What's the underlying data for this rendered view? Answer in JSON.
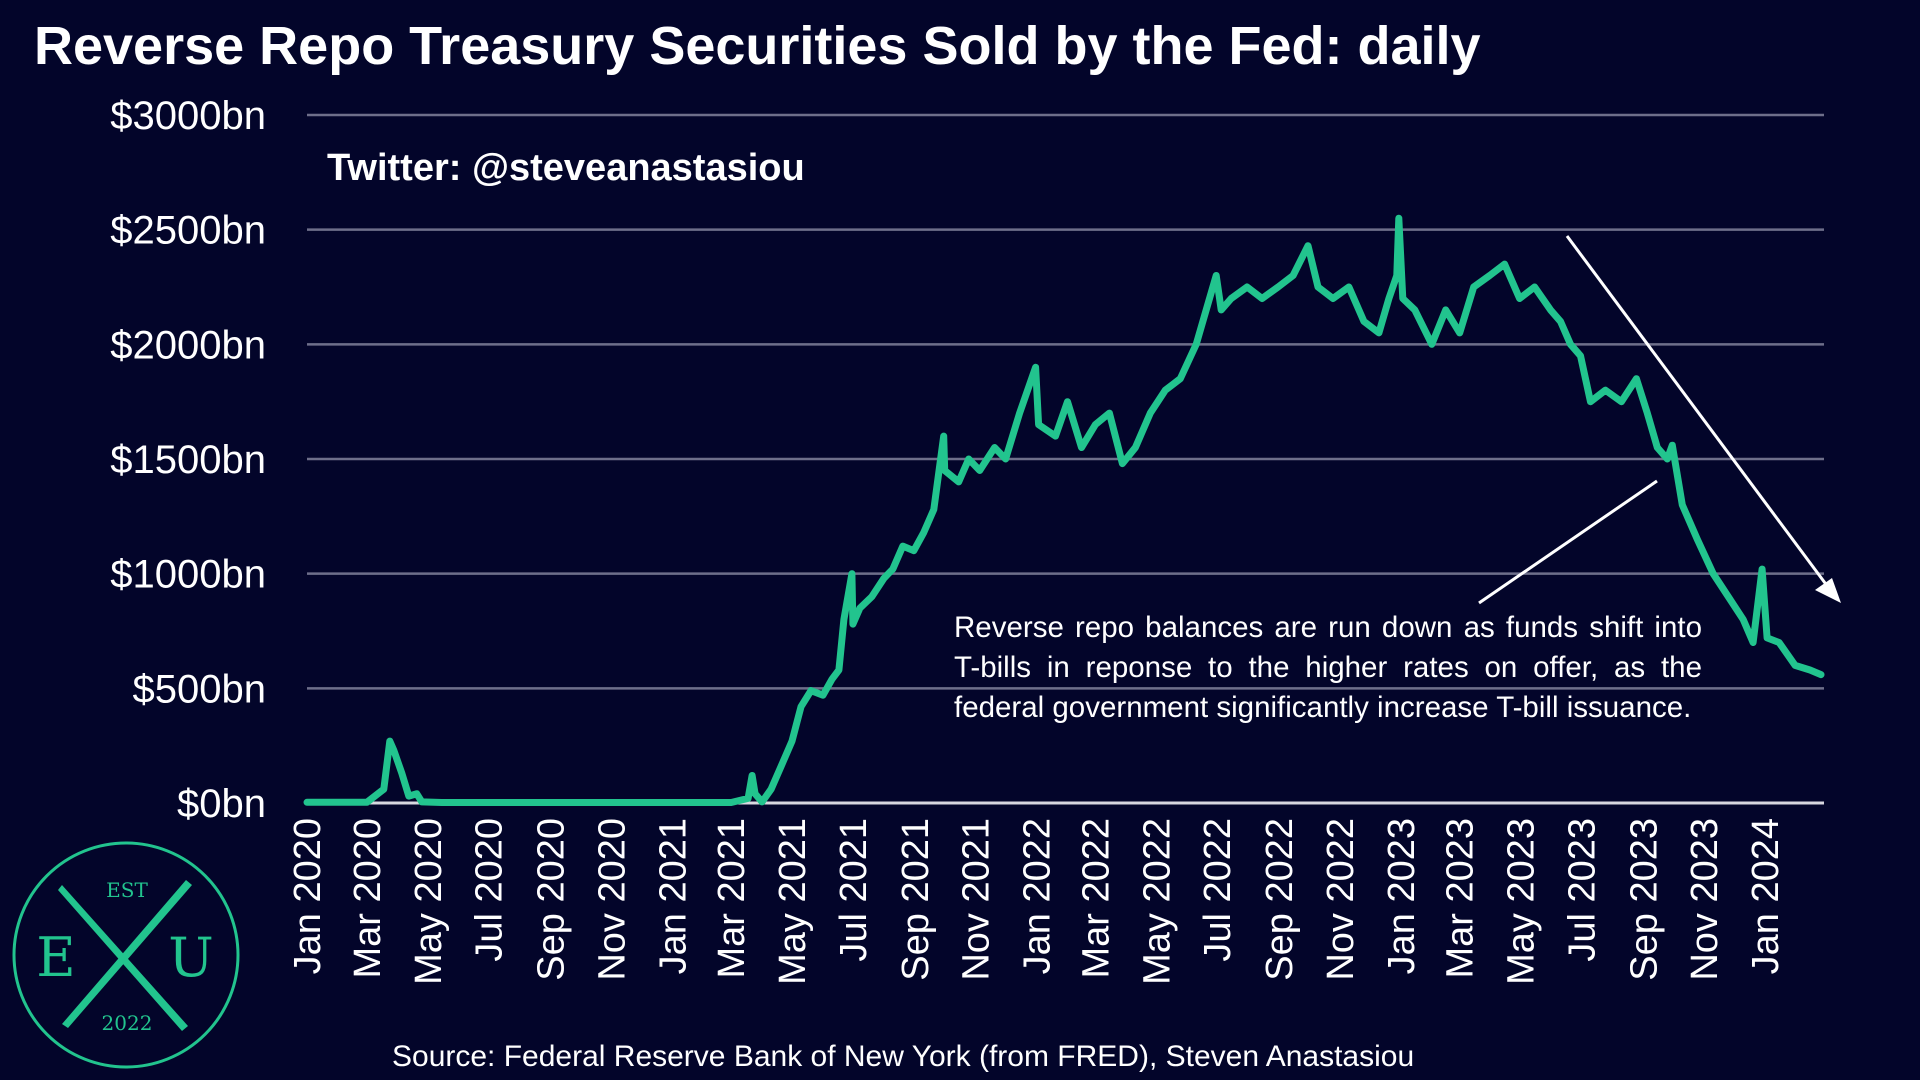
{
  "colors": {
    "background": "#03052a",
    "series": "#22c48e",
    "grid": "#6e6f8a",
    "text": "#ffffff"
  },
  "watermark": "Twitter: @steveanastasiou",
  "annotation": "Reverse repo balances are run down as funds shift into T-bills in reponse to the higher rates on offer, as the federal government significantly increase T-bill issuance.",
  "source": "Source: Federal Reserve Bank of New York (from FRED), Steven Anastasiou",
  "logo": {
    "top": "EST",
    "left": "E",
    "right": "U",
    "bottom": "2022"
  },
  "chart_data": {
    "type": "line",
    "title": "Reverse Repo Treasury Securities Sold by the Fed: daily",
    "xlabel": "",
    "ylabel": "",
    "ylim": [
      0,
      3000
    ],
    "yticks": [
      {
        "value": 0,
        "label": "$0bn"
      },
      {
        "value": 500,
        "label": "$500bn"
      },
      {
        "value": 1000,
        "label": "$1000bn"
      },
      {
        "value": 1500,
        "label": "$1500bn"
      },
      {
        "value": 2000,
        "label": "$2000bn"
      },
      {
        "value": 2500,
        "label": "$2500bn"
      },
      {
        "value": 3000,
        "label": "$3000bn"
      }
    ],
    "xlim": [
      "2020-01-01",
      "2024-02-29"
    ],
    "xticks": [
      {
        "date": "2020-01-01",
        "label": "Jan 2020"
      },
      {
        "date": "2020-03-01",
        "label": "Mar 2020"
      },
      {
        "date": "2020-05-01",
        "label": "May 2020"
      },
      {
        "date": "2020-07-01",
        "label": "Jul 2020"
      },
      {
        "date": "2020-09-01",
        "label": "Sep 2020"
      },
      {
        "date": "2020-11-01",
        "label": "Nov 2020"
      },
      {
        "date": "2021-01-01",
        "label": "Jan 2021"
      },
      {
        "date": "2021-03-01",
        "label": "Mar 2021"
      },
      {
        "date": "2021-05-01",
        "label": "May 2021"
      },
      {
        "date": "2021-07-01",
        "label": "Jul 2021"
      },
      {
        "date": "2021-09-01",
        "label": "Sep 2021"
      },
      {
        "date": "2021-11-01",
        "label": "Nov 2021"
      },
      {
        "date": "2022-01-01",
        "label": "Jan 2022"
      },
      {
        "date": "2022-03-01",
        "label": "Mar 2022"
      },
      {
        "date": "2022-05-01",
        "label": "May 2022"
      },
      {
        "date": "2022-07-01",
        "label": "Jul 2022"
      },
      {
        "date": "2022-09-01",
        "label": "Sep 2022"
      },
      {
        "date": "2022-11-01",
        "label": "Nov 2022"
      },
      {
        "date": "2023-01-01",
        "label": "Jan 2023"
      },
      {
        "date": "2023-03-01",
        "label": "Mar 2023"
      },
      {
        "date": "2023-05-01",
        "label": "May 2023"
      },
      {
        "date": "2023-07-01",
        "label": "Jul 2023"
      },
      {
        "date": "2023-09-01",
        "label": "Sep 2023"
      },
      {
        "date": "2023-11-01",
        "label": "Nov 2023"
      },
      {
        "date": "2024-01-01",
        "label": "Jan 2024"
      }
    ],
    "grid": "horizontal",
    "series": [
      {
        "name": "",
        "x": [
          "2020-01-01",
          "2020-03-01",
          "2020-03-18",
          "2020-03-24",
          "2020-03-28",
          "2020-04-05",
          "2020-04-12",
          "2020-04-20",
          "2020-04-25",
          "2020-05-15",
          "2020-09-01",
          "2021-01-01",
          "2021-03-01",
          "2021-03-18",
          "2021-03-22",
          "2021-03-25",
          "2021-04-01",
          "2021-04-10",
          "2021-04-20",
          "2021-05-01",
          "2021-05-10",
          "2021-05-20",
          "2021-06-01",
          "2021-06-10",
          "2021-06-17",
          "2021-06-22",
          "2021-06-30",
          "2021-07-01",
          "2021-07-08",
          "2021-07-20",
          "2021-08-01",
          "2021-08-10",
          "2021-08-20",
          "2021-08-31",
          "2021-09-10",
          "2021-09-20",
          "2021-09-30",
          "2021-10-01",
          "2021-10-15",
          "2021-10-25",
          "2021-11-05",
          "2021-11-20",
          "2021-12-01",
          "2021-12-15",
          "2021-12-31",
          "2022-01-03",
          "2022-01-20",
          "2022-02-01",
          "2022-02-15",
          "2022-03-01",
          "2022-03-15",
          "2022-03-28",
          "2022-04-10",
          "2022-04-25",
          "2022-05-10",
          "2022-05-25",
          "2022-06-10",
          "2022-06-20",
          "2022-06-30",
          "2022-07-05",
          "2022-07-15",
          "2022-07-31",
          "2022-08-15",
          "2022-08-31",
          "2022-09-15",
          "2022-09-30",
          "2022-10-10",
          "2022-10-25",
          "2022-11-10",
          "2022-11-25",
          "2022-12-10",
          "2022-12-20",
          "2022-12-28",
          "2022-12-30",
          "2023-01-03",
          "2023-01-15",
          "2023-02-01",
          "2023-02-15",
          "2023-03-01",
          "2023-03-15",
          "2023-03-31",
          "2023-04-15",
          "2023-04-30",
          "2023-05-15",
          "2023-05-31",
          "2023-06-10",
          "2023-06-20",
          "2023-06-30",
          "2023-07-10",
          "2023-07-25",
          "2023-08-10",
          "2023-08-25",
          "2023-09-05",
          "2023-09-15",
          "2023-09-25",
          "2023-09-30",
          "2023-10-10",
          "2023-10-25",
          "2023-11-10",
          "2023-11-25",
          "2023-12-10",
          "2023-12-20",
          "2023-12-29",
          "2024-01-03",
          "2024-01-15",
          "2024-01-31",
          "2024-02-15",
          "2024-02-26"
        ],
        "values": [
          3,
          3,
          60,
          270,
          230,
          130,
          30,
          40,
          5,
          2,
          2,
          2,
          2,
          20,
          120,
          40,
          5,
          60,
          160,
          270,
          420,
          490,
          470,
          540,
          580,
          800,
          1000,
          780,
          850,
          900,
          980,
          1020,
          1120,
          1100,
          1180,
          1280,
          1600,
          1450,
          1400,
          1500,
          1450,
          1550,
          1500,
          1700,
          1900,
          1650,
          1600,
          1750,
          1550,
          1650,
          1700,
          1480,
          1550,
          1700,
          1800,
          1850,
          2000,
          2150,
          2300,
          2150,
          2200,
          2250,
          2200,
          2250,
          2300,
          2430,
          2250,
          2200,
          2250,
          2100,
          2050,
          2200,
          2300,
          2550,
          2200,
          2150,
          2000,
          2150,
          2050,
          2250,
          2300,
          2350,
          2200,
          2250,
          2150,
          2100,
          2000,
          1950,
          1750,
          1800,
          1750,
          1850,
          1700,
          1550,
          1500,
          1560,
          1300,
          1150,
          1000,
          900,
          800,
          700,
          1020,
          720,
          700,
          600,
          580,
          560
        ]
      }
    ]
  }
}
